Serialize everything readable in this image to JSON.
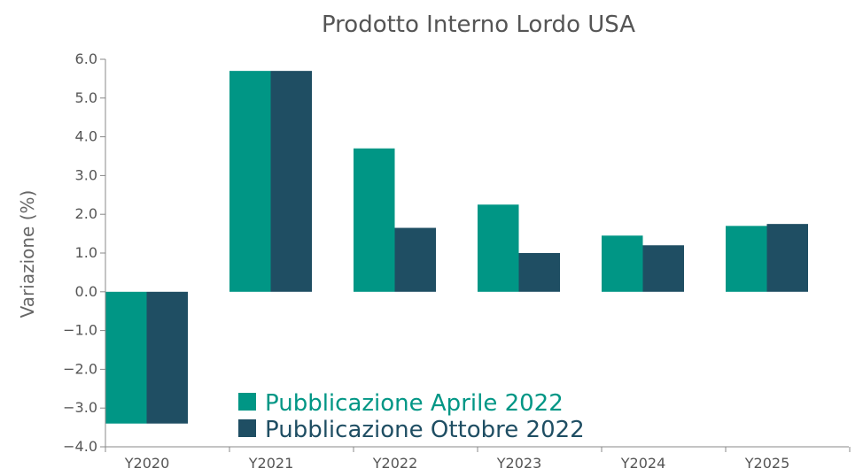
{
  "chart_data": {
    "type": "bar",
    "title": "Prodotto Interno Lordo USA",
    "xlabel": "",
    "ylabel": "Variazione (%)",
    "categories": [
      "Y2020",
      "Y2021",
      "Y2022",
      "Y2023",
      "Y2024",
      "Y2025"
    ],
    "series": [
      {
        "name": "Pubblicazione Aprile 2022",
        "color": "#009685",
        "values": [
          -3.4,
          5.7,
          3.7,
          2.25,
          1.45,
          1.7
        ]
      },
      {
        "name": "Pubblicazione Ottobre 2022",
        "color": "#1f4e63",
        "values": [
          -3.4,
          5.7,
          1.65,
          1.0,
          1.2,
          1.75
        ]
      }
    ],
    "ylim": [
      -4.0,
      6.0
    ],
    "yticks": [
      "6.0",
      "5.0",
      "4.0",
      "3.0",
      "2.0",
      "1.0",
      "0.0",
      "−1.0",
      "−2.0",
      "−3.0",
      "−4.0"
    ],
    "ytick_values": [
      6,
      5,
      4,
      3,
      2,
      1,
      0,
      -1,
      -2,
      -3,
      -4
    ],
    "grid": false,
    "legend_position": "bottom-center"
  }
}
